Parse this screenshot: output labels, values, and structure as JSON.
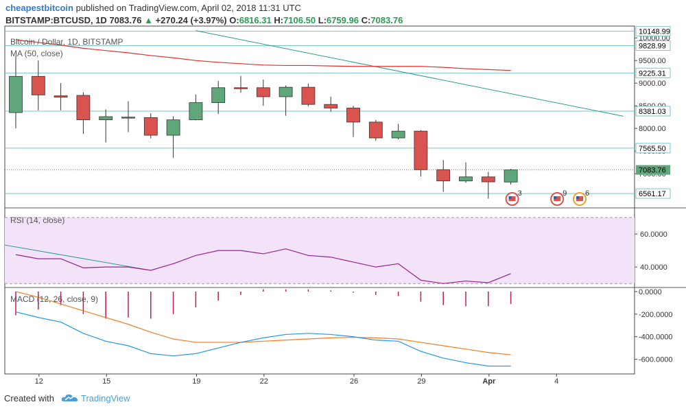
{
  "header": {
    "brand": "cheapestbitcoin",
    "published": "published on TradingView.com, April 02, 2018 11:31 UTC",
    "symbol": "BITSTAMP:BTCUSD, 1D",
    "last": "7083.76",
    "change_arrow": "▲",
    "change": "+270.24 (+3.97%)",
    "o_label": "O:",
    "o": "6816.31",
    "h_label": "H:",
    "h": "7106.50",
    "l_label": "L:",
    "l": "6759.96",
    "c_label": "C:",
    "c": "7083.76"
  },
  "footer": {
    "created_with": "Created with",
    "tradingview": "TradingView",
    "logo_icon": "tradingview-cloud-icon"
  },
  "colors": {
    "up": "#5fa67a",
    "down": "#d9534f",
    "ma": "#e0302c",
    "trend": "#2a9d8f",
    "rsi": "#9b1f8f",
    "rsi_fill": "#f3e3f8",
    "macd": "#2196f3",
    "signal": "#f57c1f",
    "hist": "#c2185b",
    "hline": "#7ac7c7"
  },
  "chart_data": [
    {
      "type": "candlestick",
      "title": "Bitcoin / Dollar, 1D, BITSTAMP",
      "indicator_label": "MA (50, close)",
      "ylim": [
        6260,
        10200
      ],
      "y_ticks": [
        7000,
        7500,
        8000,
        8500,
        9000,
        9500,
        10000
      ],
      "y_tick_labels": [
        "7000.00",
        "7500.00",
        "8000.00",
        "8500.00",
        "9000.00",
        "9500.00",
        "10000.00"
      ],
      "x_ticks": [
        {
          "label": "12",
          "idx": 1
        },
        {
          "label": "15",
          "idx": 4
        },
        {
          "label": "19",
          "idx": 8
        },
        {
          "label": "22",
          "idx": 11
        },
        {
          "label": "26",
          "idx": 15
        },
        {
          "label": "29",
          "idx": 18
        },
        {
          "label": "Apr",
          "idx": 21,
          "bold": true
        },
        {
          "label": "4",
          "idx": 24
        }
      ],
      "candles": [
        {
          "o": 8350,
          "h": 9600,
          "l": 8000,
          "c": 9150
        },
        {
          "o": 9150,
          "h": 9500,
          "l": 8400,
          "c": 8740
        },
        {
          "o": 8720,
          "h": 9000,
          "l": 8400,
          "c": 8690
        },
        {
          "o": 8730,
          "h": 8800,
          "l": 7880,
          "c": 8190
        },
        {
          "o": 8190,
          "h": 8420,
          "l": 7690,
          "c": 8260
        },
        {
          "o": 8250,
          "h": 8600,
          "l": 7920,
          "c": 8240
        },
        {
          "o": 8240,
          "h": 8330,
          "l": 7780,
          "c": 7850
        },
        {
          "o": 7850,
          "h": 8270,
          "l": 7350,
          "c": 8190
        },
        {
          "o": 8190,
          "h": 8750,
          "l": 8180,
          "c": 8570
        },
        {
          "o": 8570,
          "h": 9050,
          "l": 8320,
          "c": 8900
        },
        {
          "o": 8900,
          "h": 9160,
          "l": 8790,
          "c": 8890
        },
        {
          "o": 8900,
          "h": 9080,
          "l": 8500,
          "c": 8700
        },
        {
          "o": 8700,
          "h": 8950,
          "l": 8280,
          "c": 8910
        },
        {
          "o": 8910,
          "h": 8990,
          "l": 8490,
          "c": 8530
        },
        {
          "o": 8530,
          "h": 8700,
          "l": 8370,
          "c": 8450
        },
        {
          "o": 8450,
          "h": 8500,
          "l": 7810,
          "c": 8140
        },
        {
          "o": 8140,
          "h": 8190,
          "l": 7730,
          "c": 7790
        },
        {
          "o": 7790,
          "h": 8100,
          "l": 7760,
          "c": 7940
        },
        {
          "o": 7940,
          "h": 7960,
          "l": 6940,
          "c": 7090
        },
        {
          "o": 7090,
          "h": 7300,
          "l": 6600,
          "c": 6840
        },
        {
          "o": 6840,
          "h": 7250,
          "l": 6800,
          "c": 6930
        },
        {
          "o": 6930,
          "h": 7040,
          "l": 6450,
          "c": 6820
        },
        {
          "o": 6816.31,
          "h": 7106.5,
          "l": 6759.96,
          "c": 7083.76
        }
      ],
      "ma50": [
        9960,
        9900,
        9840,
        9770,
        9720,
        9670,
        9610,
        9560,
        9500,
        9460,
        9430,
        9400,
        9390,
        9390,
        9380,
        9370,
        9370,
        9370,
        9370,
        9350,
        9320,
        9300,
        9280
      ],
      "trendline": {
        "from": {
          "idx": 8,
          "value": 10160
        },
        "to": {
          "idx": 27,
          "value": 8270
        }
      },
      "price_levels": [
        {
          "label": "10148.99",
          "value": 10148.99
        },
        {
          "label": "9828.99",
          "value": 9828.99
        },
        {
          "label": "9225.31",
          "value": 9225.31
        },
        {
          "label": "8381.03",
          "value": 8381.03
        },
        {
          "label": "7565.50",
          "value": 7565.5
        },
        {
          "label": "6561.17",
          "value": 6561.17
        }
      ],
      "last_price": {
        "label": "7083.76",
        "value": 7083.76
      },
      "event_markers": [
        {
          "idx": 22,
          "count": "3",
          "icon": "us-flag-event-icon"
        },
        {
          "idx": 24,
          "count": "9",
          "icon": "us-flag-event-icon"
        },
        {
          "idx": 25,
          "count": "6",
          "icon": "us-flag-event-icon"
        }
      ]
    },
    {
      "type": "line",
      "title": "RSI (14, close)",
      "ylim": [
        28,
        75
      ],
      "y_ticks": [
        40,
        60
      ],
      "y_tick_labels": [
        "40.0000",
        "60.0000"
      ],
      "band": [
        30,
        70
      ],
      "values": [
        47.5,
        45,
        45,
        39.5,
        40,
        40,
        38,
        42,
        47,
        50,
        50,
        48,
        51,
        47,
        46,
        43,
        40,
        42,
        32,
        30,
        31.5,
        30.5,
        36
      ],
      "trendline": {
        "from": {
          "idx": 0,
          "value": 50
        },
        "to": {
          "idx": 6,
          "value": 38
        }
      }
    },
    {
      "type": "bar+line",
      "title": "MACD (12, 26, close, 9)",
      "ylim": [
        -730,
        30
      ],
      "y_ticks": [
        0,
        -200,
        -400,
        -600
      ],
      "y_tick_labels": [
        "0.0000",
        "-200.0000",
        "-400.0000",
        "-600.0000"
      ],
      "histogram": [
        -210,
        -160,
        -120,
        -200,
        -240,
        -230,
        -240,
        -200,
        -140,
        -80,
        -30,
        20,
        20,
        20,
        10,
        -10,
        -30,
        -40,
        -90,
        -120,
        -130,
        -130,
        -110
      ],
      "macd": [
        -180,
        -230,
        -270,
        -370,
        -440,
        -480,
        -550,
        -570,
        -550,
        -500,
        -450,
        -410,
        -380,
        -370,
        -380,
        -400,
        -430,
        -440,
        -530,
        -590,
        -630,
        -660,
        -660
      ],
      "signal": [
        0,
        -50,
        -110,
        -170,
        -230,
        -290,
        -360,
        -420,
        -450,
        -450,
        -450,
        -440,
        -430,
        -420,
        -410,
        -405,
        -410,
        -420,
        -450,
        -480,
        -510,
        -540,
        -560
      ]
    }
  ]
}
